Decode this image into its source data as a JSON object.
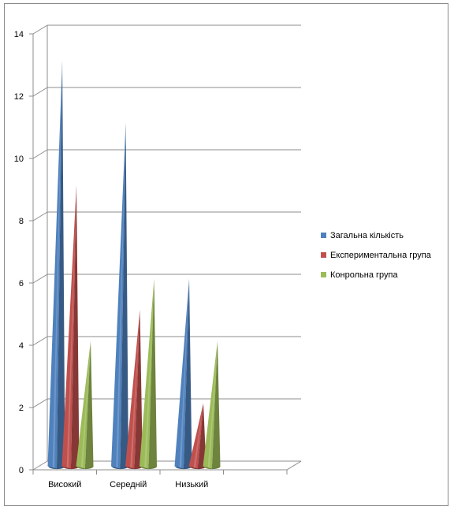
{
  "chart_data": {
    "type": "bar",
    "style": "3d-cone",
    "categories": [
      "Високий",
      "Середній",
      "Низький"
    ],
    "series": [
      {
        "name": "Загальна кількість",
        "values": [
          13,
          11,
          6
        ],
        "color": "#4f81bd"
      },
      {
        "name": "Експериментальна група",
        "values": [
          9,
          5,
          2
        ],
        "color": "#c0504d"
      },
      {
        "name": "Конрольна група",
        "values": [
          4,
          6,
          4
        ],
        "color": "#9bbb59"
      }
    ],
    "ylim": [
      0,
      14
    ],
    "yticks": [
      0,
      2,
      4,
      6,
      8,
      10,
      12,
      14
    ],
    "grid": true,
    "legend": "right"
  }
}
